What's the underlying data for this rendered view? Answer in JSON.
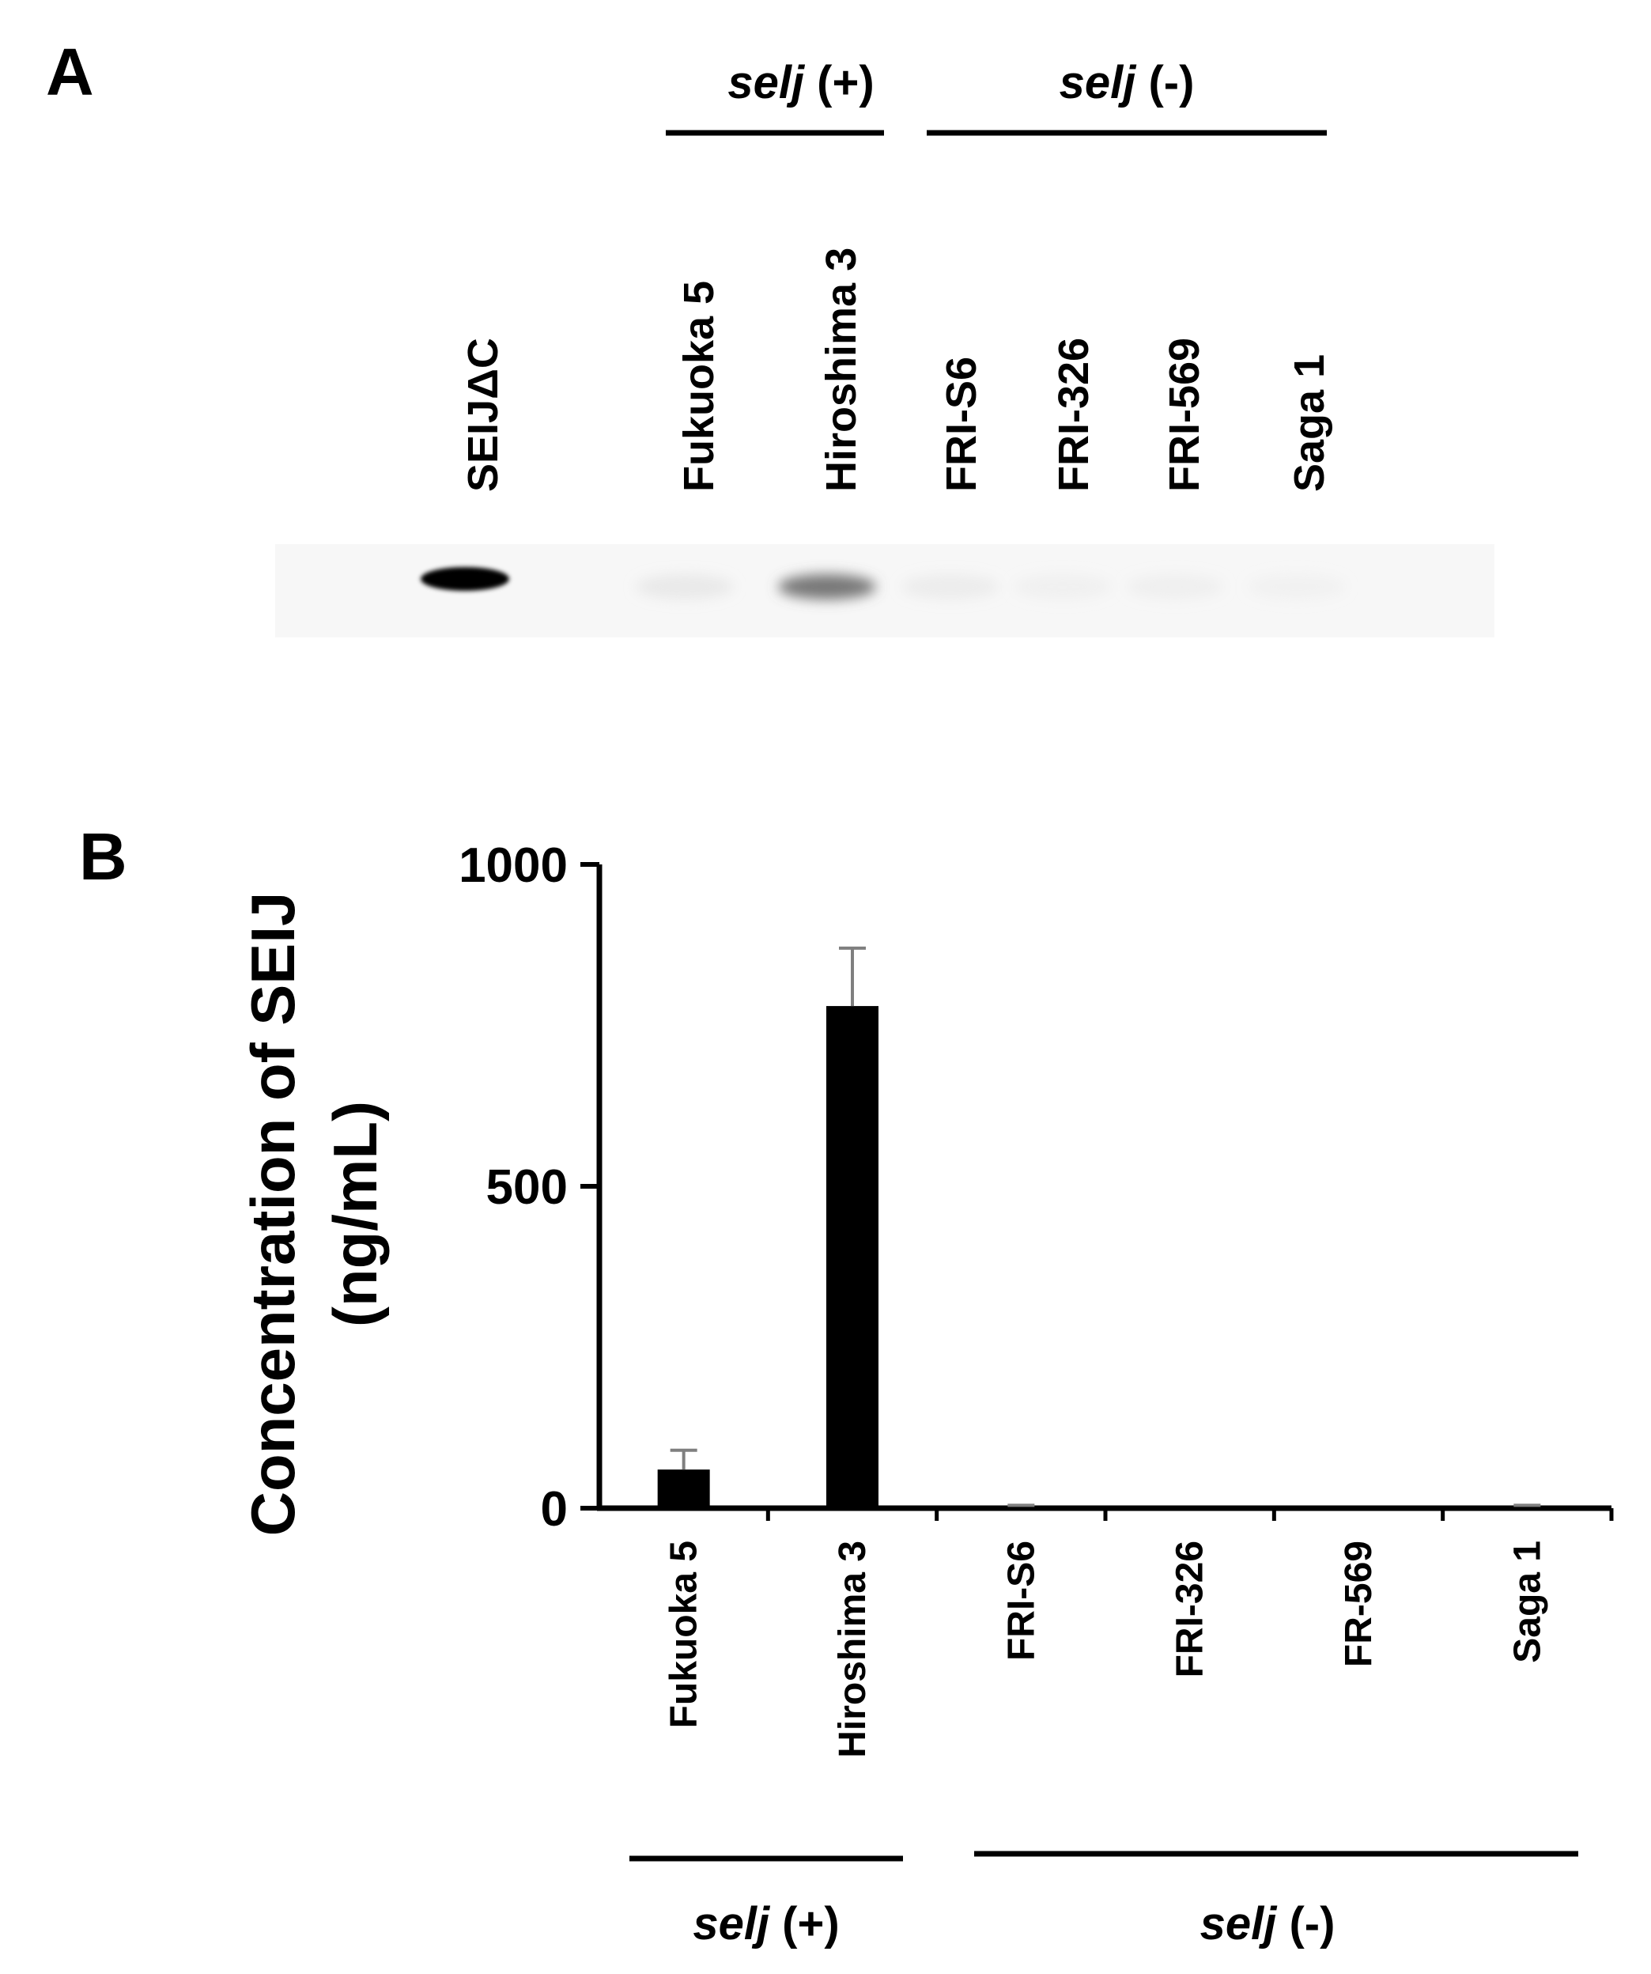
{
  "panel_a": {
    "label": "A",
    "groups": [
      {
        "gene": "selj",
        "sign": " (+)"
      },
      {
        "gene": "selj",
        "sign": " (-)"
      }
    ],
    "lanes": [
      "SEIJΔC",
      "Fukuoka 5",
      "Hiroshima 3",
      "FRI-S6",
      "FRI-326",
      "FRI-569",
      "Saga 1"
    ],
    "band_intensity": [
      1.0,
      0.08,
      0.55,
      0.06,
      0.03,
      0.04,
      0.02
    ]
  },
  "panel_b": {
    "label": "B",
    "groups": [
      {
        "gene": "selj",
        "sign": " (+)"
      },
      {
        "gene": "selj",
        "sign": " (-)"
      }
    ]
  },
  "chart_data": {
    "type": "bar",
    "title": "",
    "ylabel_lines": [
      "Concentration of SEIJ",
      "(ng/mL)"
    ],
    "xlabel": "",
    "categories": [
      "Fukuoka 5",
      "Hiroshima 3",
      "FRI-S6",
      "FRI-326",
      "FR-569",
      "Saga 1"
    ],
    "values": [
      60,
      780,
      2,
      0,
      0,
      2
    ],
    "errors": [
      30,
      90,
      0,
      0,
      0,
      0
    ],
    "ylim": [
      0,
      1000
    ],
    "yticks": [
      "0",
      "500",
      "1000"
    ],
    "bar_color": "#000000",
    "error_color": "#7f7f7f",
    "grid": false
  }
}
